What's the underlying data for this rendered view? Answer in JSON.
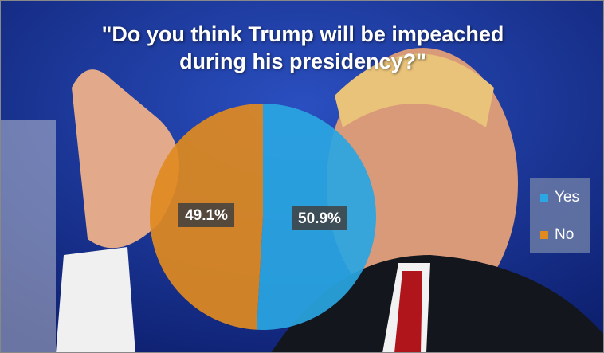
{
  "chart_data": {
    "type": "pie",
    "title": "\"Do you think Trump will be impeached during his presidency?\"",
    "categories": [
      "Yes",
      "No"
    ],
    "values": [
      50.9,
      49.1
    ],
    "value_labels": [
      "50.9%",
      "49.1%"
    ],
    "colors": [
      "#2aa6e2",
      "#e08a1f"
    ],
    "legend": "right"
  }
}
